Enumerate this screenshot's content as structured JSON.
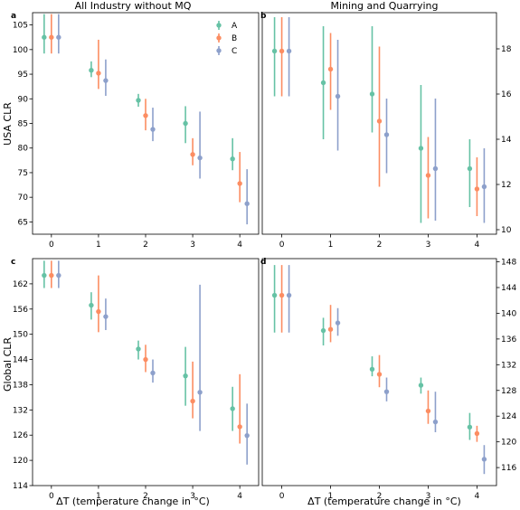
{
  "colors": {
    "A": "#66c2a5",
    "B": "#fc8d62",
    "C": "#8da0cb"
  },
  "column_titles": [
    "All Industry without MQ",
    "Mining and Quarrying"
  ],
  "row_labels": [
    "USA CLR",
    "Global CLR"
  ],
  "xlabel": "ΔT (temperature change in °C)",
  "legend": [
    "A",
    "B",
    "C"
  ],
  "chart_data": [
    {
      "type": "scatter",
      "panel": "a",
      "title": "All Industry without MQ",
      "ylabel": "USA CLR",
      "xlabel": "",
      "x_ticks": [
        0,
        1,
        2,
        3,
        4
      ],
      "ylim": [
        62.5,
        107.5
      ],
      "y_ticks": [
        65,
        70,
        75,
        80,
        85,
        90,
        95,
        100,
        105
      ],
      "y_axis_side": "left",
      "legend": "top-right",
      "series": [
        {
          "name": "A",
          "points": [
            {
              "x": 0,
              "y": 102.5,
              "low": 99.2,
              "high": 107.2
            },
            {
              "x": 1,
              "y": 95.8,
              "low": 94.4,
              "high": 97.6
            },
            {
              "x": 2,
              "y": 89.7,
              "low": 88.4,
              "high": 91.0
            },
            {
              "x": 3,
              "y": 85.0,
              "low": 81.0,
              "high": 88.5
            },
            {
              "x": 4,
              "y": 77.8,
              "low": 75.5,
              "high": 82.0
            }
          ]
        },
        {
          "name": "B",
          "points": [
            {
              "x": 0,
              "y": 102.5,
              "low": 99.2,
              "high": 107.2
            },
            {
              "x": 1,
              "y": 95.2,
              "low": 92.0,
              "high": 102.0
            },
            {
              "x": 2,
              "y": 86.6,
              "low": 83.6,
              "high": 90.0
            },
            {
              "x": 3,
              "y": 78.7,
              "low": 76.5,
              "high": 82.0
            },
            {
              "x": 4,
              "y": 72.8,
              "low": 69.0,
              "high": 79.2
            }
          ]
        },
        {
          "name": "C",
          "points": [
            {
              "x": 0,
              "y": 102.5,
              "low": 99.2,
              "high": 107.2
            },
            {
              "x": 1,
              "y": 93.7,
              "low": 90.6,
              "high": 98.0
            },
            {
              "x": 2,
              "y": 83.8,
              "low": 81.4,
              "high": 88.2
            },
            {
              "x": 3,
              "y": 78.0,
              "low": 73.8,
              "high": 87.4
            },
            {
              "x": 4,
              "y": 68.7,
              "low": 64.5,
              "high": 75.7
            }
          ]
        }
      ]
    },
    {
      "type": "scatter",
      "panel": "b",
      "title": "Mining and Quarrying",
      "ylabel": "",
      "xlabel": "",
      "x_ticks": [
        0,
        1,
        2,
        3,
        4
      ],
      "ylim": [
        9.8,
        19.6
      ],
      "y_ticks": [
        10,
        12,
        14,
        16,
        18
      ],
      "y_axis_side": "right",
      "series": [
        {
          "name": "A",
          "points": [
            {
              "x": 0,
              "y": 17.9,
              "low": 15.9,
              "high": 19.4
            },
            {
              "x": 1,
              "y": 16.5,
              "low": 14.0,
              "high": 19.0
            },
            {
              "x": 2,
              "y": 16.0,
              "low": 14.3,
              "high": 19.0
            },
            {
              "x": 3,
              "y": 13.6,
              "low": 10.3,
              "high": 16.4
            },
            {
              "x": 4,
              "y": 12.7,
              "low": 11.0,
              "high": 14.0
            }
          ]
        },
        {
          "name": "B",
          "points": [
            {
              "x": 0,
              "y": 17.9,
              "low": 15.9,
              "high": 19.4
            },
            {
              "x": 1,
              "y": 17.1,
              "low": 15.3,
              "high": 18.7
            },
            {
              "x": 2,
              "y": 14.8,
              "low": 11.9,
              "high": 18.1
            },
            {
              "x": 3,
              "y": 12.4,
              "low": 10.5,
              "high": 14.1
            },
            {
              "x": 4,
              "y": 11.8,
              "low": 10.6,
              "high": 13.2
            }
          ]
        },
        {
          "name": "C",
          "points": [
            {
              "x": 0,
              "y": 17.9,
              "low": 15.9,
              "high": 19.4
            },
            {
              "x": 1,
              "y": 15.9,
              "low": 13.5,
              "high": 18.4
            },
            {
              "x": 2,
              "y": 14.2,
              "low": 12.5,
              "high": 15.8
            },
            {
              "x": 3,
              "y": 12.7,
              "low": 10.4,
              "high": 15.8
            },
            {
              "x": 4,
              "y": 11.9,
              "low": 10.3,
              "high": 13.6
            }
          ]
        }
      ]
    },
    {
      "type": "scatter",
      "panel": "c",
      "title": "",
      "ylabel": "Global CLR",
      "xlabel": "ΔT (temperature change in °C)",
      "x_ticks": [
        0,
        1,
        2,
        3,
        4
      ],
      "ylim": [
        114,
        168
      ],
      "y_ticks": [
        114,
        120,
        126,
        132,
        138,
        144,
        150,
        156,
        162
      ],
      "y_axis_side": "left",
      "series": [
        {
          "name": "A",
          "points": [
            {
              "x": 0,
              "y": 164,
              "low": 161.0,
              "high": 167.5
            },
            {
              "x": 1,
              "y": 156.9,
              "low": 153.5,
              "high": 160.0
            },
            {
              "x": 2,
              "y": 146.5,
              "low": 144.0,
              "high": 148.5
            },
            {
              "x": 3,
              "y": 140.1,
              "low": 133.0,
              "high": 147.0
            },
            {
              "x": 4,
              "y": 132.3,
              "low": 127.0,
              "high": 137.5
            }
          ]
        },
        {
          "name": "B",
          "points": [
            {
              "x": 0,
              "y": 164,
              "low": 161.0,
              "high": 167.5
            },
            {
              "x": 1,
              "y": 155.4,
              "low": 150.5,
              "high": 164.0
            },
            {
              "x": 2,
              "y": 144.0,
              "low": 141.0,
              "high": 147.5
            },
            {
              "x": 3,
              "y": 134.1,
              "low": 130.0,
              "high": 143.5
            },
            {
              "x": 4,
              "y": 128.0,
              "low": 124.0,
              "high": 140.5
            }
          ]
        },
        {
          "name": "C",
          "points": [
            {
              "x": 0,
              "y": 164,
              "low": 161.0,
              "high": 167.5
            },
            {
              "x": 1,
              "y": 154.2,
              "low": 151.0,
              "high": 158.5
            },
            {
              "x": 2,
              "y": 140.8,
              "low": 138.5,
              "high": 144.0
            },
            {
              "x": 3,
              "y": 136.2,
              "low": 127.0,
              "high": 161.8
            },
            {
              "x": 4,
              "y": 125.9,
              "low": 119.0,
              "high": 133.5
            }
          ]
        }
      ]
    },
    {
      "type": "scatter",
      "panel": "d",
      "title": "",
      "ylabel": "",
      "xlabel": "ΔT (temperature change in °C)",
      "x_ticks": [
        0,
        1,
        2,
        3,
        4
      ],
      "ylim": [
        113.2,
        148.5
      ],
      "y_ticks": [
        116,
        120,
        124,
        128,
        132,
        136,
        140,
        144,
        148
      ],
      "y_axis_side": "right",
      "series": [
        {
          "name": "A",
          "points": [
            {
              "x": 0,
              "y": 142.8,
              "low": 137.0,
              "high": 147.5
            },
            {
              "x": 1,
              "y": 137.3,
              "low": 135.0,
              "high": 139.3
            },
            {
              "x": 2,
              "y": 131.3,
              "low": 130.2,
              "high": 133.3
            },
            {
              "x": 3,
              "y": 128.8,
              "low": 127.5,
              "high": 130.0
            },
            {
              "x": 4,
              "y": 122.3,
              "low": 120.3,
              "high": 124.5
            }
          ]
        },
        {
          "name": "B",
          "points": [
            {
              "x": 0,
              "y": 142.8,
              "low": 137.0,
              "high": 147.5
            },
            {
              "x": 1,
              "y": 137.5,
              "low": 135.5,
              "high": 141.3
            },
            {
              "x": 2,
              "y": 130.5,
              "low": 128.5,
              "high": 133.5
            },
            {
              "x": 3,
              "y": 124.8,
              "low": 122.8,
              "high": 128.0
            },
            {
              "x": 4,
              "y": 121.3,
              "low": 120.0,
              "high": 122.5
            }
          ]
        },
        {
          "name": "C",
          "points": [
            {
              "x": 0,
              "y": 142.8,
              "low": 137.0,
              "high": 147.5
            },
            {
              "x": 1,
              "y": 138.5,
              "low": 136.5,
              "high": 140.8
            },
            {
              "x": 2,
              "y": 127.8,
              "low": 126.3,
              "high": 130.0
            },
            {
              "x": 3,
              "y": 123.1,
              "low": 121.5,
              "high": 127.8
            },
            {
              "x": 4,
              "y": 117.3,
              "low": 115.0,
              "high": 119.5
            }
          ]
        }
      ]
    }
  ]
}
